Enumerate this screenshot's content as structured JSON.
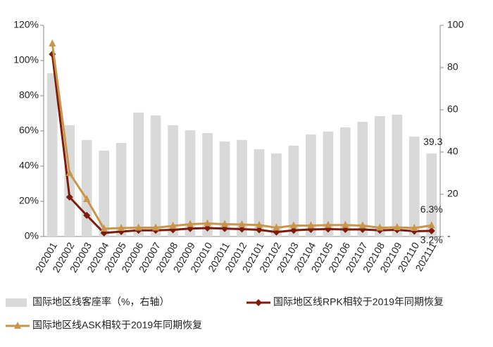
{
  "chart_data": {
    "type": "bar-line",
    "categories": [
      "202001",
      "202002",
      "202003",
      "202004",
      "202005",
      "202006",
      "202007",
      "202008",
      "202009",
      "202010",
      "202011",
      "202012",
      "202101",
      "202102",
      "202103",
      "202104",
      "202105",
      "202106",
      "202107",
      "202108",
      "202109",
      "202110",
      "202111"
    ],
    "ylim": [
      0,
      120
    ],
    "yticks": [
      {
        "value": 0,
        "label": "0%"
      },
      {
        "value": 20,
        "label": "20%"
      },
      {
        "value": 40,
        "label": "40%"
      },
      {
        "value": 60,
        "label": "60%"
      },
      {
        "value": 80,
        "label": "80%"
      },
      {
        "value": 100,
        "label": "100%"
      },
      {
        "value": 120,
        "label": "120%"
      }
    ],
    "y2lim": [
      0,
      100
    ],
    "y2ticks": [
      {
        "value": 0,
        "label": "-"
      },
      20,
      40,
      60,
      80,
      100
    ],
    "series": [
      {
        "name": "国际地区线客座率（%，右轴）",
        "type": "bar",
        "axis": "y2",
        "color": "#d9d9d9",
        "values": [
          77.3,
          52.7,
          45.7,
          40.7,
          44.3,
          58.7,
          57.3,
          52.7,
          50.3,
          49,
          45,
          45.7,
          41.3,
          39.3,
          43,
          48.3,
          49.7,
          51.7,
          54.3,
          57,
          57.7,
          47.3,
          39.3
        ],
        "value_labels": [
          null,
          null,
          null,
          null,
          null,
          null,
          null,
          null,
          null,
          null,
          null,
          null,
          null,
          null,
          null,
          null,
          null,
          null,
          null,
          null,
          null,
          null,
          "39.3"
        ]
      },
      {
        "name": "国际地区线RPK相较于2019年同期恢复",
        "type": "line",
        "marker": "diamond",
        "color": "#7b1c0c",
        "values": [
          103.6,
          22.4,
          12,
          2,
          2.8,
          3.5,
          3.5,
          3.8,
          4.5,
          4.8,
          4.5,
          4.2,
          3.8,
          2.5,
          3.5,
          4,
          4.2,
          4,
          4,
          3.5,
          3.8,
          3,
          3.2
        ],
        "value_labels": [
          null,
          null,
          null,
          null,
          null,
          null,
          null,
          null,
          null,
          null,
          null,
          null,
          null,
          null,
          null,
          null,
          null,
          null,
          null,
          null,
          null,
          null,
          "3.2%"
        ]
      },
      {
        "name": "国际地区线ASK相较于2019年同期恢复",
        "type": "line",
        "marker": "triangle",
        "color": "#c8954a",
        "values": [
          109.6,
          36,
          21.2,
          4.4,
          4.8,
          5,
          5,
          6,
          7,
          7.4,
          7,
          6.8,
          6.5,
          5,
          6.2,
          6.2,
          6.5,
          6.5,
          6.2,
          5,
          5.2,
          4.8,
          6.3
        ],
        "value_labels": [
          null,
          null,
          null,
          null,
          null,
          null,
          null,
          null,
          null,
          null,
          null,
          null,
          null,
          null,
          null,
          null,
          null,
          null,
          null,
          null,
          null,
          null,
          "6.3%"
        ]
      }
    ]
  }
}
